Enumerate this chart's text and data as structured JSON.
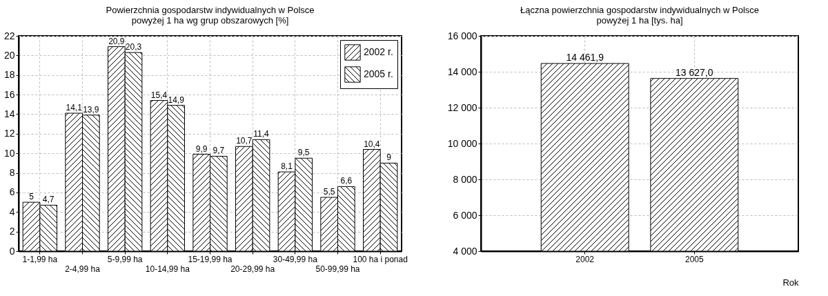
{
  "chart_data": [
    {
      "type": "bar",
      "title": "Powierzchnia gospodarstw indywidualnych w Polsce powyżej 1 ha wg grup obszarowych [%]",
      "categories": [
        "1-1,99 ha",
        "2-4,99 ha",
        "5-9,99 ha",
        "10-14,99 ha",
        "15-19,99 ha",
        "20-29,99 ha",
        "30-49,99 ha",
        "50-99,99 ha",
        "100 ha i ponad"
      ],
      "series": [
        {
          "name": "2002 r.",
          "color": "#000000",
          "values": [
            5,
            14.1,
            20.9,
            15.4,
            9.9,
            10.7,
            8.1,
            5.5,
            10.4
          ],
          "value_labels": [
            "5",
            "14,1",
            "20,9",
            "15,4",
            "9,9",
            "10,7",
            "8,1",
            "5,5",
            "10,4"
          ]
        },
        {
          "name": "2005 r.",
          "color": "#000000",
          "values": [
            4.7,
            13.9,
            20.3,
            14.9,
            9.7,
            11.4,
            9.5,
            6.6,
            9
          ],
          "value_labels": [
            "4,7",
            "13,9",
            "20,3",
            "14,9",
            "9,7",
            "11,4",
            "9,5",
            "6,6",
            "9"
          ]
        }
      ],
      "ylim": [
        0,
        22
      ],
      "yticks": [
        0,
        2,
        4,
        6,
        8,
        10,
        12,
        14,
        16,
        18,
        20,
        22
      ],
      "grid": true,
      "legend": "top right"
    },
    {
      "type": "bar",
      "title": "Łączna powierzchnia gospodarstw indywidualnych w Polsce powyżej 1 ha [tys. ha]",
      "xlabel": "Rok",
      "categories": [
        "2002",
        "2005"
      ],
      "series": [
        {
          "color": "#000000",
          "values": [
            14461.9,
            13627.0
          ],
          "value_labels": [
            "14 461,9",
            "13 627,0"
          ]
        }
      ],
      "ylim": [
        4000,
        16000
      ],
      "yticks": [
        {
          "value": 4000,
          "label": "4 000"
        },
        {
          "value": 6000,
          "label": "6 000"
        },
        {
          "value": 8000,
          "label": "8 000"
        },
        {
          "value": 10000,
          "label": "10 000"
        },
        {
          "value": 12000,
          "label": "12 000"
        },
        {
          "value": 14000,
          "label": "14 000"
        },
        {
          "value": 16000,
          "label": "16 000"
        }
      ],
      "grid": true
    }
  ]
}
